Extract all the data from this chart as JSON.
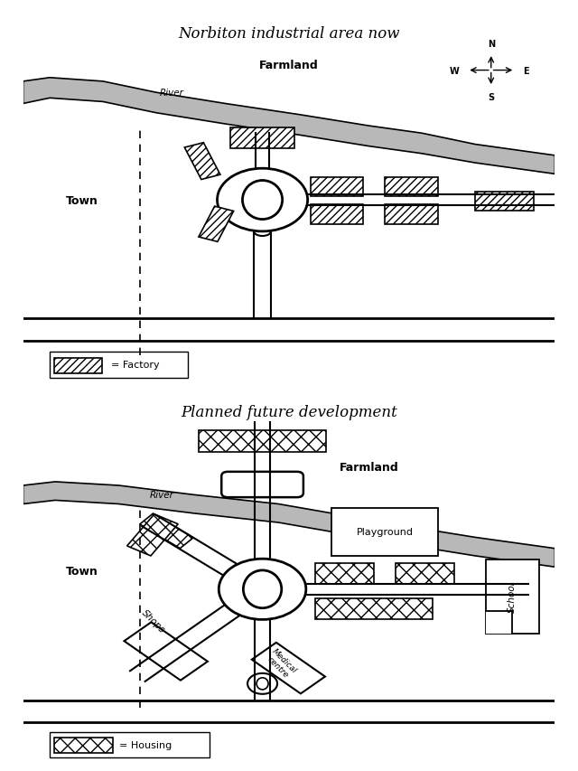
{
  "title1": "Norbiton industrial area now",
  "title2": "Planned future development",
  "bg_color": "#ffffff",
  "river_color": "#b8b8b8",
  "factory_hatch": "////",
  "housing_hatch": "xx",
  "legend1_label": "= Factory",
  "legend2_label": "= Housing"
}
